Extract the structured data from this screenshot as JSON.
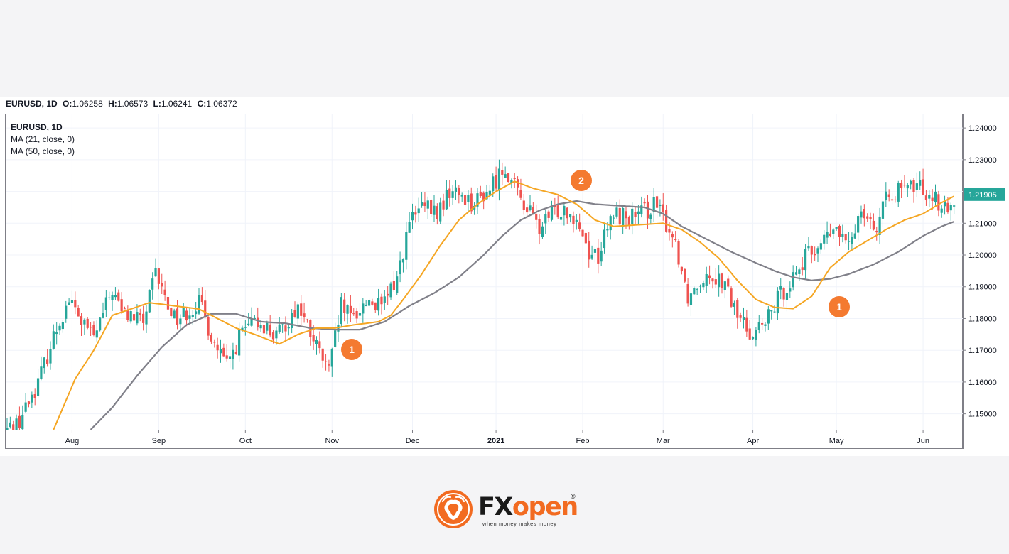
{
  "header": {
    "symbol": "EURUSD, 1D",
    "open_label": "O:",
    "open": "1.06258",
    "high_label": "H:",
    "high": "1.06573",
    "low_label": "L:",
    "low": "1.06241",
    "close_label": "C:",
    "close": "1.06372"
  },
  "legend": {
    "title": "EURUSD, 1D",
    "ma21": "MA (21, close, 0)",
    "ma50": "MA (50, close, 0)"
  },
  "price_label": "1.21905",
  "markers": [
    {
      "label": "1",
      "date_index": 101,
      "price": 1.1736
    },
    {
      "label": "2",
      "date_index": 184,
      "price": 1.2232
    },
    {
      "label": "1",
      "date_index": 278,
      "price": 1.1831
    }
  ],
  "brand": {
    "fx": "FX",
    "open": "open",
    "registered": "®",
    "slogan": "when money makes money"
  },
  "colors": {
    "up": "#26a69a",
    "down": "#ef5350",
    "ma21": "#f5a623",
    "ma50": "#808089",
    "marker": "#f47a30",
    "price_tag": "#26a69a"
  },
  "chart_data": {
    "type": "candlestick",
    "symbol": "EURUSD",
    "timeframe": "1D",
    "ylim": [
      1.145,
      1.2445
    ],
    "y_ticks": [
      "1.15000",
      "1.16000",
      "1.17000",
      "1.18000",
      "1.19000",
      "1.20000",
      "1.21000",
      "1.22000",
      "1.23000",
      "1.24000"
    ],
    "x_ticks": [
      {
        "label": "Aug",
        "index": 21
      },
      {
        "label": "Sep",
        "index": 49
      },
      {
        "label": "Oct",
        "index": 77
      },
      {
        "label": "Nov",
        "index": 105
      },
      {
        "label": "Dec",
        "index": 131
      },
      {
        "label": "2021",
        "index": 158,
        "bold": true
      },
      {
        "label": "Feb",
        "index": 186
      },
      {
        "label": "Mar",
        "index": 212
      },
      {
        "label": "Apr",
        "index": 241
      },
      {
        "label": "May",
        "index": 268
      },
      {
        "label": "Jun",
        "index": 296
      }
    ],
    "close_anchors": [
      [
        0,
        1.145
      ],
      [
        4,
        1.148
      ],
      [
        10,
        1.16
      ],
      [
        16,
        1.177
      ],
      [
        20,
        1.186
      ],
      [
        24,
        1.179
      ],
      [
        28,
        1.174
      ],
      [
        34,
        1.189
      ],
      [
        37,
        1.182
      ],
      [
        44,
        1.179
      ],
      [
        48,
        1.194
      ],
      [
        52,
        1.184
      ],
      [
        55,
        1.18
      ],
      [
        62,
        1.185
      ],
      [
        67,
        1.172
      ],
      [
        71,
        1.165
      ],
      [
        76,
        1.176
      ],
      [
        82,
        1.179
      ],
      [
        87,
        1.174
      ],
      [
        94,
        1.184
      ],
      [
        99,
        1.173
      ],
      [
        104,
        1.163
      ],
      [
        108,
        1.184
      ],
      [
        111,
        1.18
      ],
      [
        117,
        1.186
      ],
      [
        121,
        1.183
      ],
      [
        126,
        1.193
      ],
      [
        130,
        1.21
      ],
      [
        134,
        1.215
      ],
      [
        139,
        1.213
      ],
      [
        143,
        1.22
      ],
      [
        147,
        1.219
      ],
      [
        151,
        1.216
      ],
      [
        156,
        1.221
      ],
      [
        161,
        1.228
      ],
      [
        164,
        1.221
      ],
      [
        168,
        1.215
      ],
      [
        172,
        1.208
      ],
      [
        176,
        1.213
      ],
      [
        180,
        1.215
      ],
      [
        184,
        1.212
      ],
      [
        188,
        1.201
      ],
      [
        191,
        1.2
      ],
      [
        196,
        1.213
      ],
      [
        200,
        1.212
      ],
      [
        204,
        1.212
      ],
      [
        209,
        1.216
      ],
      [
        213,
        1.21
      ],
      [
        216,
        1.204
      ],
      [
        220,
        1.187
      ],
      [
        226,
        1.195
      ],
      [
        231,
        1.192
      ],
      [
        236,
        1.181
      ],
      [
        240,
        1.176
      ],
      [
        245,
        1.178
      ],
      [
        249,
        1.186
      ],
      [
        253,
        1.192
      ],
      [
        258,
        1.199
      ],
      [
        263,
        1.204
      ],
      [
        268,
        1.208
      ],
      [
        272,
        1.202
      ],
      [
        276,
        1.216
      ],
      [
        281,
        1.208
      ],
      [
        285,
        1.22
      ],
      [
        290,
        1.22
      ],
      [
        294,
        1.222
      ],
      [
        299,
        1.219
      ],
      [
        304,
        1.213
      ],
      [
        306,
        1.217
      ]
    ],
    "ma21_anchors": [
      [
        15,
        1.145
      ],
      [
        22,
        1.161
      ],
      [
        28,
        1.17
      ],
      [
        34,
        1.181
      ],
      [
        40,
        1.183
      ],
      [
        46,
        1.185
      ],
      [
        54,
        1.184
      ],
      [
        62,
        1.183
      ],
      [
        68,
        1.18
      ],
      [
        74,
        1.177
      ],
      [
        80,
        1.175
      ],
      [
        88,
        1.172
      ],
      [
        94,
        1.175
      ],
      [
        100,
        1.177
      ],
      [
        106,
        1.177
      ],
      [
        112,
        1.178
      ],
      [
        120,
        1.179
      ],
      [
        124,
        1.181
      ],
      [
        128,
        1.186
      ],
      [
        134,
        1.194
      ],
      [
        140,
        1.203
      ],
      [
        146,
        1.211
      ],
      [
        152,
        1.216
      ],
      [
        158,
        1.22
      ],
      [
        164,
        1.2232
      ],
      [
        170,
        1.221
      ],
      [
        178,
        1.219
      ],
      [
        184,
        1.216
      ],
      [
        190,
        1.211
      ],
      [
        196,
        1.209
      ],
      [
        204,
        1.2095
      ],
      [
        212,
        1.21
      ],
      [
        218,
        1.208
      ],
      [
        224,
        1.204
      ],
      [
        230,
        1.199
      ],
      [
        236,
        1.192
      ],
      [
        242,
        1.186
      ],
      [
        248,
        1.1835
      ],
      [
        254,
        1.1831
      ],
      [
        260,
        1.187
      ],
      [
        266,
        1.196
      ],
      [
        272,
        1.201
      ],
      [
        278,
        1.2045
      ],
      [
        284,
        1.208
      ],
      [
        290,
        1.211
      ],
      [
        296,
        1.213
      ],
      [
        302,
        1.2165
      ],
      [
        306,
        1.2185
      ]
    ],
    "ma50_anchors": [
      [
        27,
        1.145
      ],
      [
        34,
        1.152
      ],
      [
        42,
        1.162
      ],
      [
        50,
        1.171
      ],
      [
        58,
        1.178
      ],
      [
        66,
        1.1815
      ],
      [
        74,
        1.1815
      ],
      [
        82,
        1.179
      ],
      [
        90,
        1.1785
      ],
      [
        98,
        1.177
      ],
      [
        106,
        1.1765
      ],
      [
        114,
        1.1765
      ],
      [
        122,
        1.179
      ],
      [
        130,
        1.184
      ],
      [
        138,
        1.188
      ],
      [
        146,
        1.193
      ],
      [
        154,
        1.2
      ],
      [
        160,
        1.206
      ],
      [
        166,
        1.211
      ],
      [
        172,
        1.214
      ],
      [
        178,
        1.216
      ],
      [
        184,
        1.217
      ],
      [
        190,
        1.216
      ],
      [
        198,
        1.2155
      ],
      [
        206,
        1.215
      ],
      [
        212,
        1.213
      ],
      [
        218,
        1.209
      ],
      [
        226,
        1.205
      ],
      [
        234,
        1.201
      ],
      [
        242,
        1.1975
      ],
      [
        248,
        1.195
      ],
      [
        254,
        1.193
      ],
      [
        260,
        1.192
      ],
      [
        266,
        1.1925
      ],
      [
        272,
        1.194
      ],
      [
        280,
        1.197
      ],
      [
        288,
        1.201
      ],
      [
        296,
        1.206
      ],
      [
        302,
        1.209
      ],
      [
        306,
        1.2105
      ]
    ]
  }
}
